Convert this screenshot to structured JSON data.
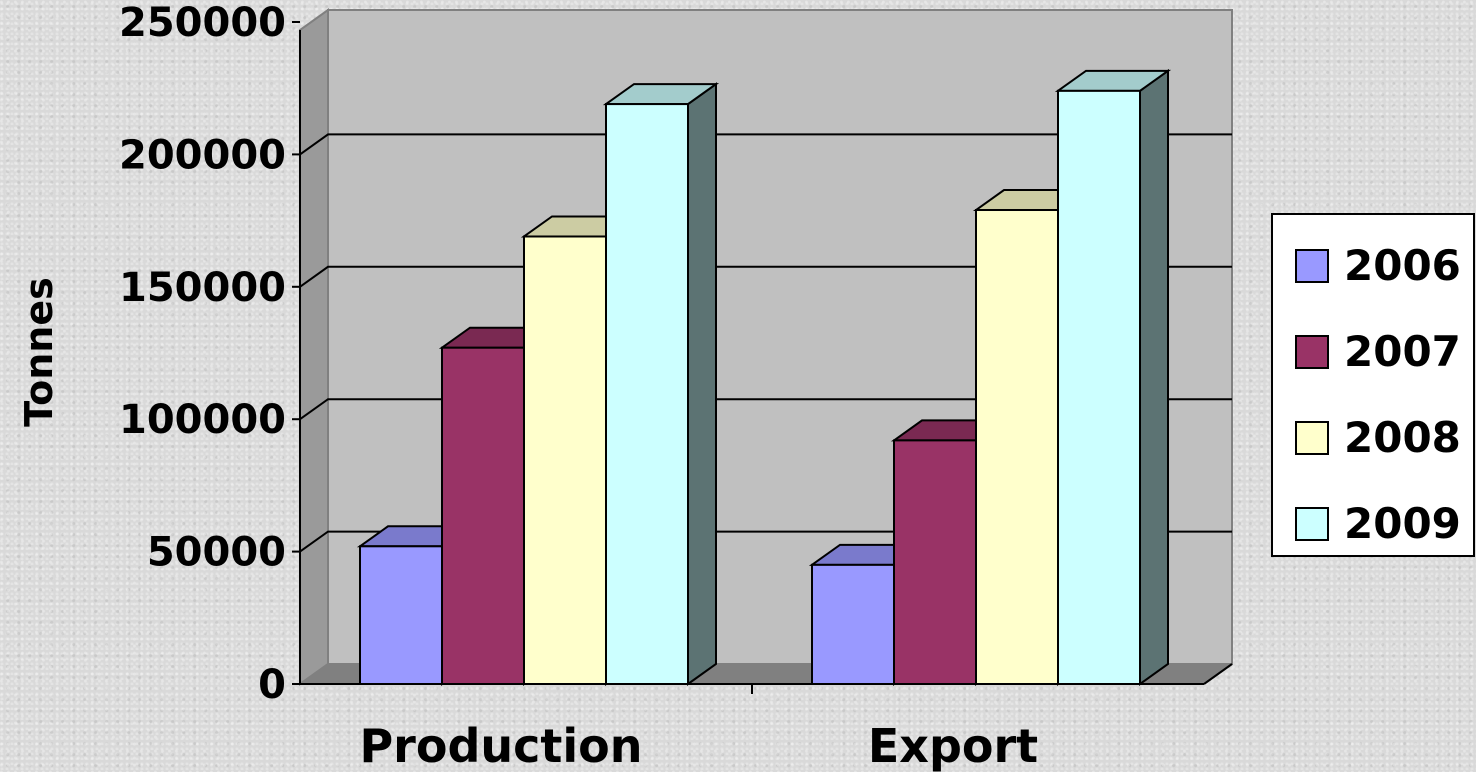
{
  "chart_data": {
    "type": "bar",
    "categories": [
      "Production",
      "Export"
    ],
    "series": [
      {
        "name": "2006",
        "values": [
          52000,
          45000
        ],
        "color": "#9999ff"
      },
      {
        "name": "2007",
        "values": [
          127000,
          92000
        ],
        "color": "#993366"
      },
      {
        "name": "2008",
        "values": [
          169000,
          179000
        ],
        "color": "#ffffcc"
      },
      {
        "name": "2009",
        "values": [
          219000,
          224000
        ],
        "color": "#ccffff"
      }
    ],
    "title": "",
    "xlabel": "",
    "ylabel": "Tonnes",
    "ylim": [
      0,
      250000
    ],
    "yticks": [
      "0",
      "50000",
      "100000",
      "150000",
      "200000",
      "250000"
    ],
    "grid": true,
    "legend_position": "right",
    "three_d": true,
    "colors": {
      "plot_wall": "#c0c0c0",
      "floor": "#808080",
      "gridline": "#000000"
    }
  }
}
